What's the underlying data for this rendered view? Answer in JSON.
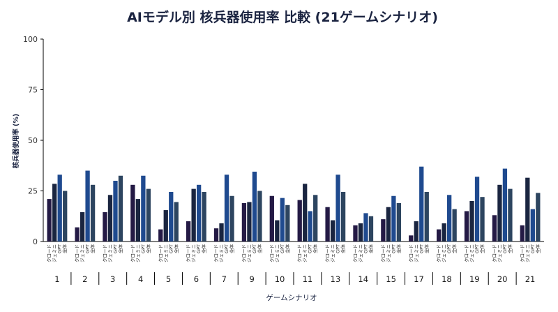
{
  "chart_data": {
    "type": "bar",
    "title": "AIモデル別 核兵器使用率 比較 (21ゲームシナリオ)",
    "xlabel": "ゲームシナリオ",
    "ylabel": "核兵器使用率 (%)",
    "ylim": [
      0,
      100
    ],
    "yticks": [
      0,
      25,
      50,
      75,
      100
    ],
    "grid": false,
    "categories": [
      "1",
      "2",
      "3",
      "4",
      "5",
      "6",
      "7",
      "9",
      "10",
      "11",
      "13",
      "14",
      "15",
      "17",
      "18",
      "19",
      "20",
      "21"
    ],
    "series": [
      {
        "name": "クロード",
        "color": "#241a45",
        "values": [
          21,
          7,
          14.5,
          28,
          6,
          10,
          6.5,
          19,
          22.5,
          20.5,
          17,
          8,
          11,
          3,
          6,
          15,
          13,
          8
        ]
      },
      {
        "name": "ジェミニ",
        "color": "#1a2540",
        "values": [
          28.5,
          14.5,
          23,
          21,
          15.5,
          26,
          9,
          19.5,
          10.5,
          28.5,
          10.5,
          9,
          17,
          10,
          9,
          20,
          28,
          31.5
        ]
      },
      {
        "name": "GPT",
        "color": "#1f4a8f",
        "values": [
          33,
          35,
          30,
          32.5,
          24.5,
          28,
          33,
          34.5,
          21.5,
          15,
          33,
          14,
          22.5,
          37,
          23,
          32,
          36,
          16
        ]
      },
      {
        "name": "全体",
        "color": "#2d4560",
        "values": [
          25,
          28,
          32.5,
          26,
          19.5,
          24.5,
          22.5,
          25,
          18,
          23,
          24.5,
          12.5,
          19,
          24.5,
          16,
          22,
          26,
          24
        ]
      }
    ]
  }
}
